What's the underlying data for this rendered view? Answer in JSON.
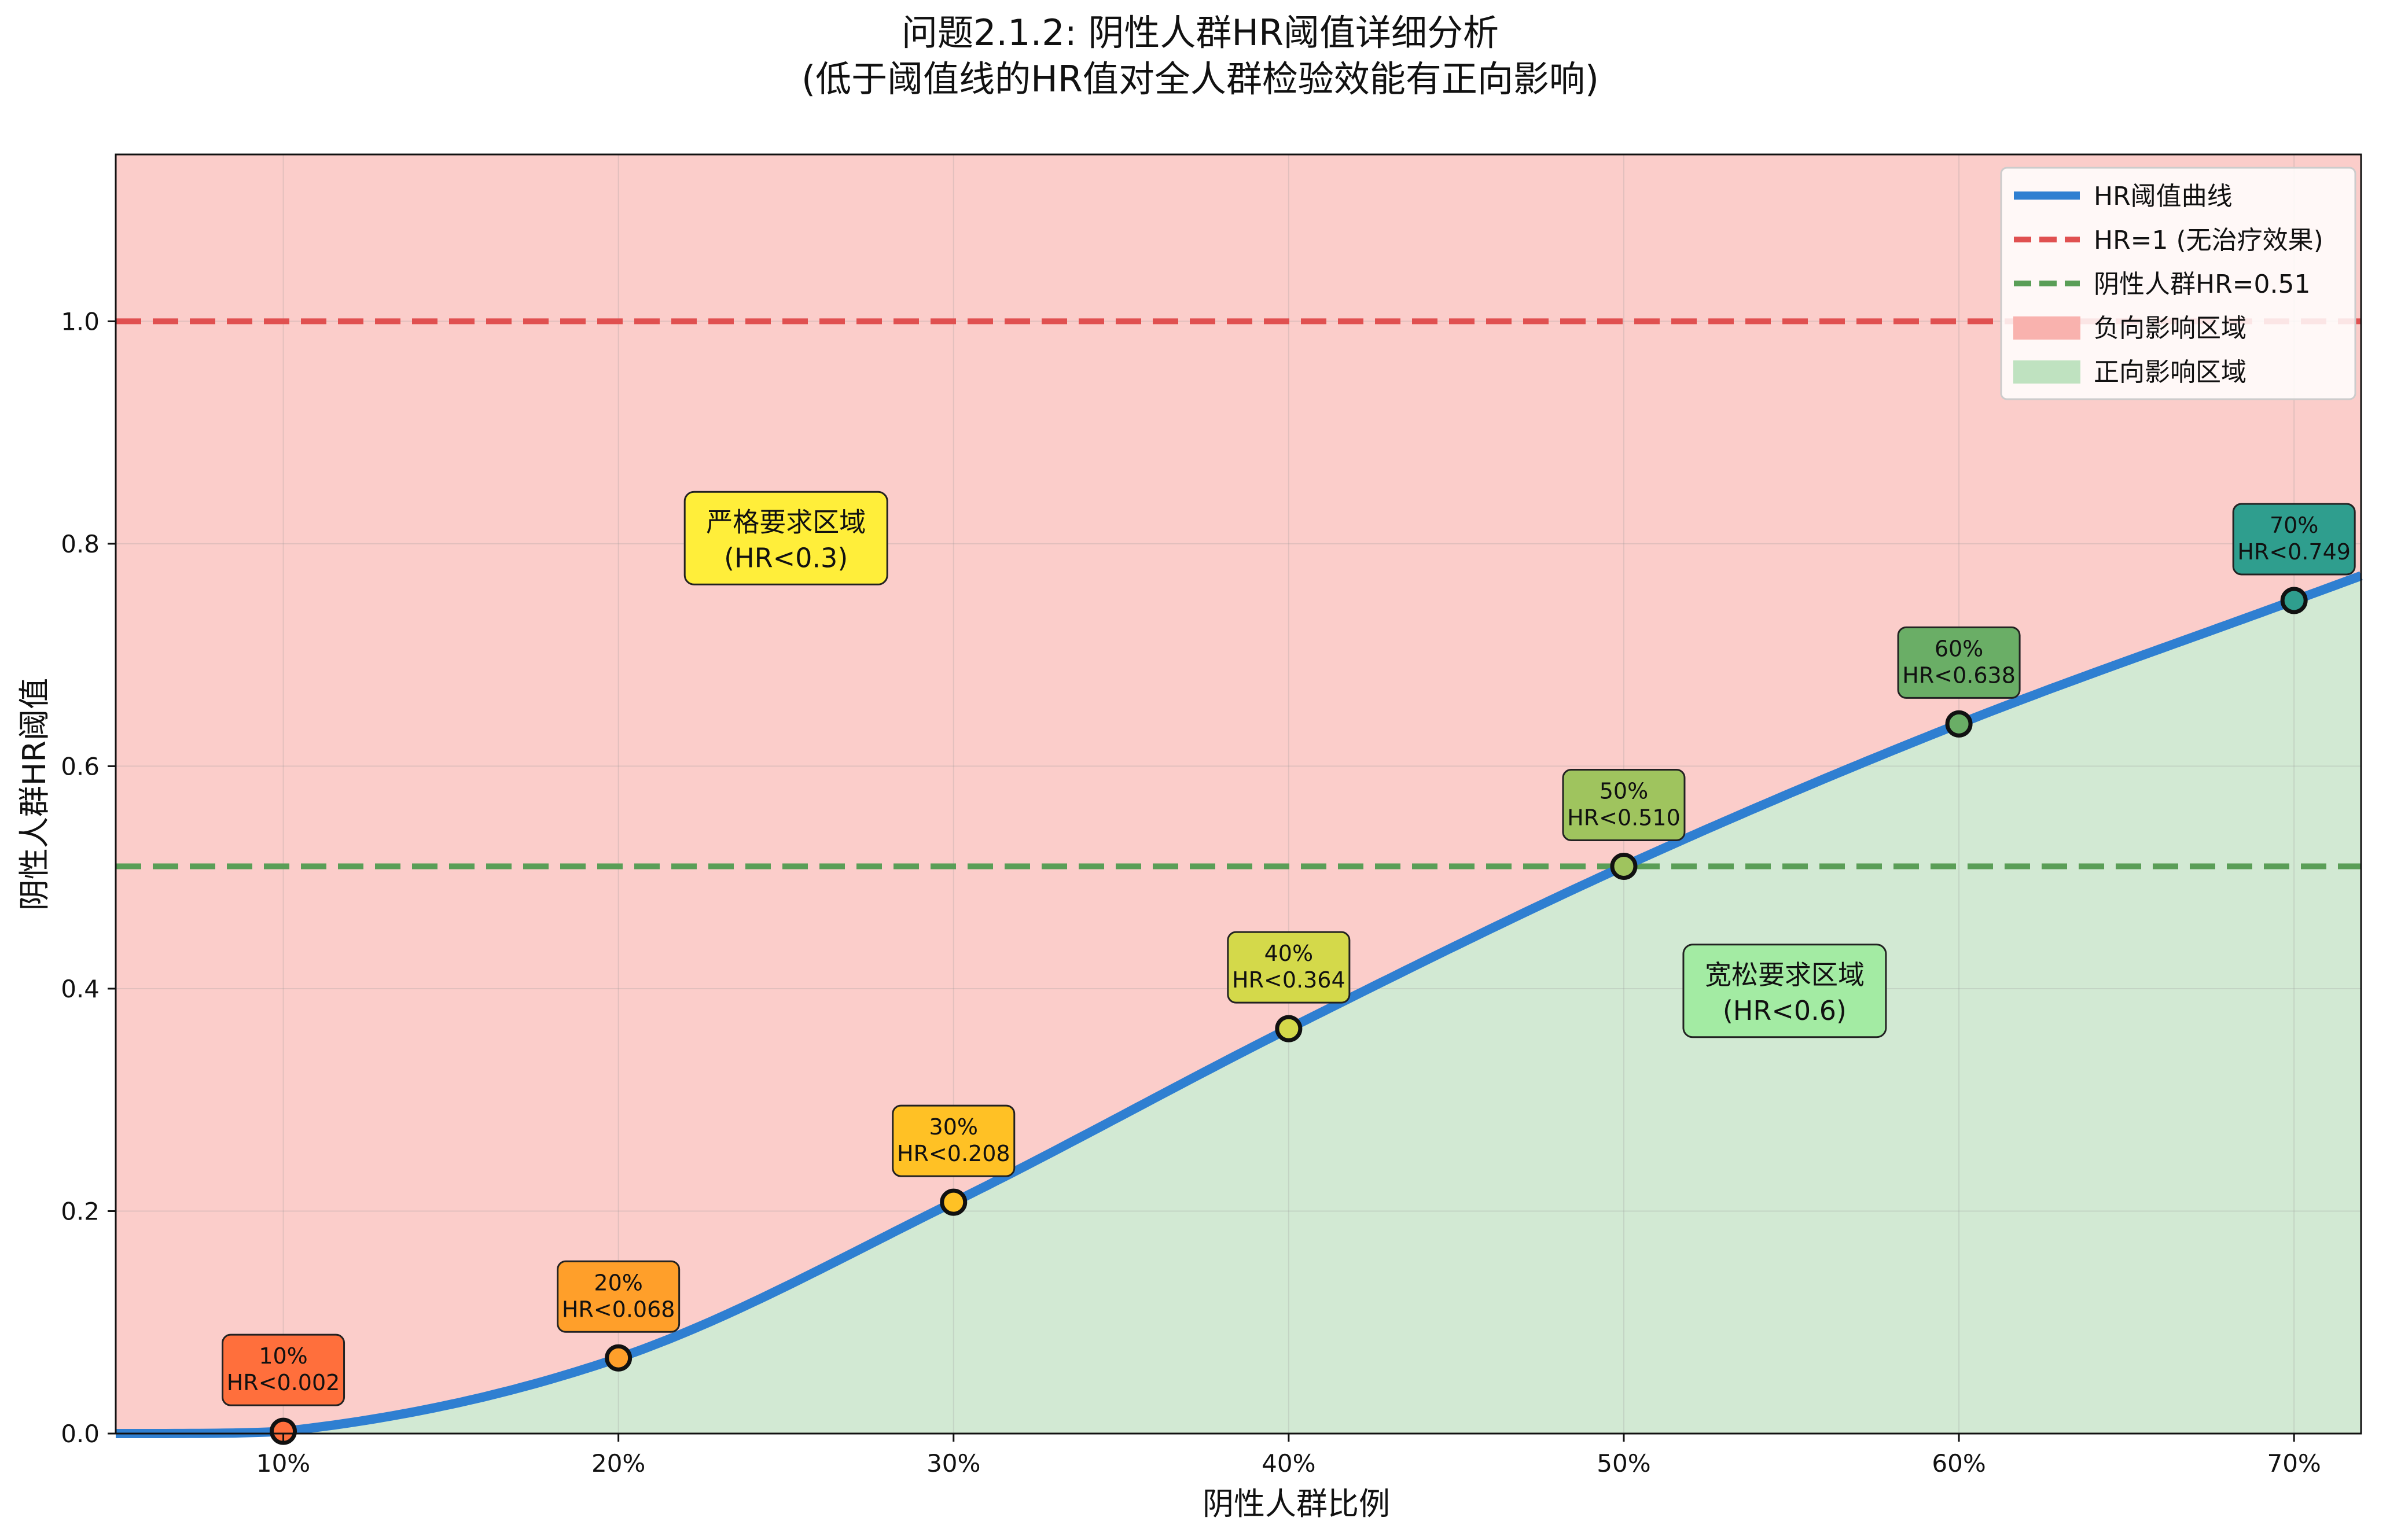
{
  "title_line1": "问题2.1.2: 阴性人群HR阈值详细分析",
  "title_line2": "(低于阈值线的HR值对全人群检验效能有正向影响)",
  "chart_data": {
    "type": "line",
    "xlabel": "阴性人群比例",
    "ylabel": "阴性人群HR阈值",
    "xlim": [
      5,
      72
    ],
    "ylim": [
      0,
      1.15
    ],
    "x_ticks": [
      "10%",
      "20%",
      "30%",
      "40%",
      "50%",
      "60%",
      "70%"
    ],
    "y_ticks": [
      "0.0",
      "0.2",
      "0.4",
      "0.6",
      "0.8",
      "1.0"
    ],
    "grid": true,
    "legend_position": "top-right",
    "series": [
      {
        "name": "HR阈值曲线",
        "x": [
          10,
          20,
          30,
          40,
          50,
          60,
          70
        ],
        "y": [
          0.002,
          0.068,
          0.208,
          0.364,
          0.51,
          0.638,
          0.749
        ],
        "color": "#2f7fd1"
      }
    ],
    "reference_lines": [
      {
        "name": "HR=1 (无治疗效果)",
        "y": 1.0,
        "color": "#e05050"
      },
      {
        "name": "阴性人群HR=0.51",
        "y": 0.51,
        "color": "#5a9e57"
      }
    ],
    "regions": [
      {
        "name": "负向影响区域",
        "color": "#fbcdca"
      },
      {
        "name": "正向影响区域",
        "color": "#d2e9d3"
      }
    ],
    "point_labels": [
      {
        "pct": "10%",
        "hr": "HR<0.002",
        "color": "#ff6f3c"
      },
      {
        "pct": "20%",
        "hr": "HR<0.068",
        "color": "#ff9f2a"
      },
      {
        "pct": "30%",
        "hr": "HR<0.208",
        "color": "#ffc125"
      },
      {
        "pct": "40%",
        "hr": "HR<0.364",
        "color": "#d4d94a"
      },
      {
        "pct": "50%",
        "hr": "HR<0.510",
        "color": "#9fc45e"
      },
      {
        "pct": "60%",
        "hr": "HR<0.638",
        "color": "#6aae66"
      },
      {
        "pct": "70%",
        "hr": "HR<0.749",
        "color": "#2f9e8e"
      }
    ],
    "annotations": [
      {
        "line1": "严格要求区域",
        "line2": "(HR<0.3)",
        "x": 25,
        "y": 0.805,
        "color": "#ffee3a"
      },
      {
        "line1": "宽松要求区域",
        "line2": "(HR<0.6)",
        "x": 54.8,
        "y": 0.398,
        "color": "#a3eba3"
      }
    ]
  }
}
